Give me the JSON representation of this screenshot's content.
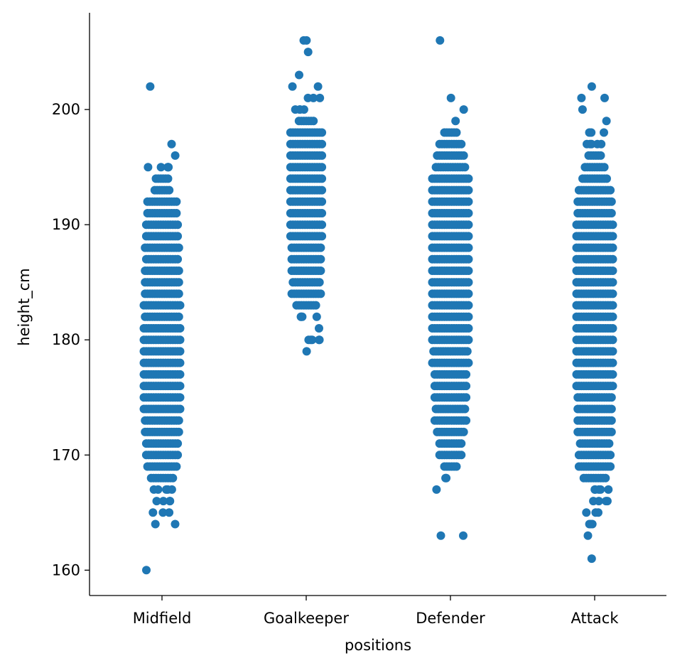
{
  "chart_data": {
    "type": "scatter",
    "subtype": "strip",
    "xlabel": "positions",
    "ylabel": "height_cm",
    "categories": [
      "Midfield",
      "Goalkeeper",
      "Defender",
      "Attack"
    ],
    "yticks": [
      160,
      170,
      180,
      190,
      200
    ],
    "ylim": [
      157.8,
      208.4
    ],
    "grid": false,
    "legend": "none",
    "marker_color": "#1f77b4",
    "series": [
      {
        "category": "Midfield",
        "heights": [
          {
            "y": 160,
            "n": 1
          },
          {
            "y": 164,
            "n": 2
          },
          {
            "y": 165,
            "n": 3
          },
          {
            "y": 166,
            "n": 4
          },
          {
            "y": 167,
            "n": 5
          },
          {
            "y": 168,
            "n": 10
          },
          {
            "y": 169,
            "n": 13
          },
          {
            "y": 170,
            "n": 14
          },
          {
            "y": 171,
            "n": 14
          },
          {
            "y": 172,
            "n": 15
          },
          {
            "y": 173,
            "n": 15
          },
          {
            "y": 174,
            "n": 16
          },
          {
            "y": 175,
            "n": 16
          },
          {
            "y": 176,
            "n": 16
          },
          {
            "y": 177,
            "n": 16
          },
          {
            "y": 178,
            "n": 16
          },
          {
            "y": 179,
            "n": 16
          },
          {
            "y": 180,
            "n": 16
          },
          {
            "y": 181,
            "n": 16
          },
          {
            "y": 182,
            "n": 15
          },
          {
            "y": 183,
            "n": 16
          },
          {
            "y": 184,
            "n": 15
          },
          {
            "y": 185,
            "n": 15
          },
          {
            "y": 186,
            "n": 15
          },
          {
            "y": 187,
            "n": 14
          },
          {
            "y": 188,
            "n": 15
          },
          {
            "y": 189,
            "n": 14
          },
          {
            "y": 190,
            "n": 14
          },
          {
            "y": 191,
            "n": 13
          },
          {
            "y": 192,
            "n": 13
          },
          {
            "y": 193,
            "n": 7
          },
          {
            "y": 194,
            "n": 6
          },
          {
            "y": 195,
            "n": 5
          },
          {
            "y": 196,
            "n": 1
          },
          {
            "y": 197,
            "n": 1
          },
          {
            "y": 202,
            "n": 1
          }
        ]
      },
      {
        "category": "Goalkeeper",
        "heights": [
          {
            "y": 179,
            "n": 1
          },
          {
            "y": 180,
            "n": 5
          },
          {
            "y": 181,
            "n": 1
          },
          {
            "y": 182,
            "n": 4
          },
          {
            "y": 183,
            "n": 9
          },
          {
            "y": 184,
            "n": 13
          },
          {
            "y": 185,
            "n": 12
          },
          {
            "y": 186,
            "n": 13
          },
          {
            "y": 187,
            "n": 13
          },
          {
            "y": 188,
            "n": 13
          },
          {
            "y": 189,
            "n": 14
          },
          {
            "y": 190,
            "n": 14
          },
          {
            "y": 191,
            "n": 14
          },
          {
            "y": 192,
            "n": 14
          },
          {
            "y": 193,
            "n": 14
          },
          {
            "y": 194,
            "n": 14
          },
          {
            "y": 195,
            "n": 14
          },
          {
            "y": 196,
            "n": 14
          },
          {
            "y": 197,
            "n": 14
          },
          {
            "y": 198,
            "n": 14
          },
          {
            "y": 199,
            "n": 7
          },
          {
            "y": 200,
            "n": 4
          },
          {
            "y": 201,
            "n": 3
          },
          {
            "y": 202,
            "n": 2
          },
          {
            "y": 203,
            "n": 1
          },
          {
            "y": 205,
            "n": 1
          },
          {
            "y": 206,
            "n": 2
          }
        ]
      },
      {
        "category": "Defender",
        "heights": [
          {
            "y": 163,
            "n": 2
          },
          {
            "y": 167,
            "n": 1
          },
          {
            "y": 168,
            "n": 2
          },
          {
            "y": 169,
            "n": 6
          },
          {
            "y": 170,
            "n": 10
          },
          {
            "y": 171,
            "n": 10
          },
          {
            "y": 172,
            "n": 12
          },
          {
            "y": 173,
            "n": 14
          },
          {
            "y": 174,
            "n": 13
          },
          {
            "y": 175,
            "n": 14
          },
          {
            "y": 176,
            "n": 14
          },
          {
            "y": 177,
            "n": 14
          },
          {
            "y": 178,
            "n": 16
          },
          {
            "y": 179,
            "n": 15
          },
          {
            "y": 180,
            "n": 16
          },
          {
            "y": 181,
            "n": 16
          },
          {
            "y": 182,
            "n": 16
          },
          {
            "y": 183,
            "n": 16
          },
          {
            "y": 184,
            "n": 16
          },
          {
            "y": 185,
            "n": 16
          },
          {
            "y": 186,
            "n": 16
          },
          {
            "y": 187,
            "n": 16
          },
          {
            "y": 188,
            "n": 16
          },
          {
            "y": 189,
            "n": 16
          },
          {
            "y": 190,
            "n": 16
          },
          {
            "y": 191,
            "n": 16
          },
          {
            "y": 192,
            "n": 16
          },
          {
            "y": 193,
            "n": 16
          },
          {
            "y": 194,
            "n": 16
          },
          {
            "y": 195,
            "n": 13
          },
          {
            "y": 196,
            "n": 12
          },
          {
            "y": 197,
            "n": 10
          },
          {
            "y": 198,
            "n": 6
          },
          {
            "y": 199,
            "n": 1
          },
          {
            "y": 200,
            "n": 1
          },
          {
            "y": 201,
            "n": 1
          },
          {
            "y": 206,
            "n": 1
          }
        ]
      },
      {
        "category": "Attack",
        "heights": [
          {
            "y": 161,
            "n": 1
          },
          {
            "y": 163,
            "n": 1
          },
          {
            "y": 164,
            "n": 3
          },
          {
            "y": 165,
            "n": 3
          },
          {
            "y": 166,
            "n": 4
          },
          {
            "y": 167,
            "n": 5
          },
          {
            "y": 168,
            "n": 10
          },
          {
            "y": 169,
            "n": 14
          },
          {
            "y": 170,
            "n": 14
          },
          {
            "y": 171,
            "n": 13
          },
          {
            "y": 172,
            "n": 15
          },
          {
            "y": 173,
            "n": 15
          },
          {
            "y": 174,
            "n": 15
          },
          {
            "y": 175,
            "n": 15
          },
          {
            "y": 176,
            "n": 16
          },
          {
            "y": 177,
            "n": 16
          },
          {
            "y": 178,
            "n": 16
          },
          {
            "y": 179,
            "n": 16
          },
          {
            "y": 180,
            "n": 16
          },
          {
            "y": 181,
            "n": 16
          },
          {
            "y": 182,
            "n": 16
          },
          {
            "y": 183,
            "n": 16
          },
          {
            "y": 184,
            "n": 16
          },
          {
            "y": 185,
            "n": 16
          },
          {
            "y": 186,
            "n": 16
          },
          {
            "y": 187,
            "n": 16
          },
          {
            "y": 188,
            "n": 16
          },
          {
            "y": 189,
            "n": 16
          },
          {
            "y": 190,
            "n": 16
          },
          {
            "y": 191,
            "n": 15
          },
          {
            "y": 192,
            "n": 15
          },
          {
            "y": 193,
            "n": 14
          },
          {
            "y": 194,
            "n": 11
          },
          {
            "y": 195,
            "n": 9
          },
          {
            "y": 196,
            "n": 6
          },
          {
            "y": 197,
            "n": 5
          },
          {
            "y": 198,
            "n": 3
          },
          {
            "y": 199,
            "n": 1
          },
          {
            "y": 200,
            "n": 1
          },
          {
            "y": 201,
            "n": 2
          },
          {
            "y": 202,
            "n": 1
          }
        ]
      }
    ]
  }
}
